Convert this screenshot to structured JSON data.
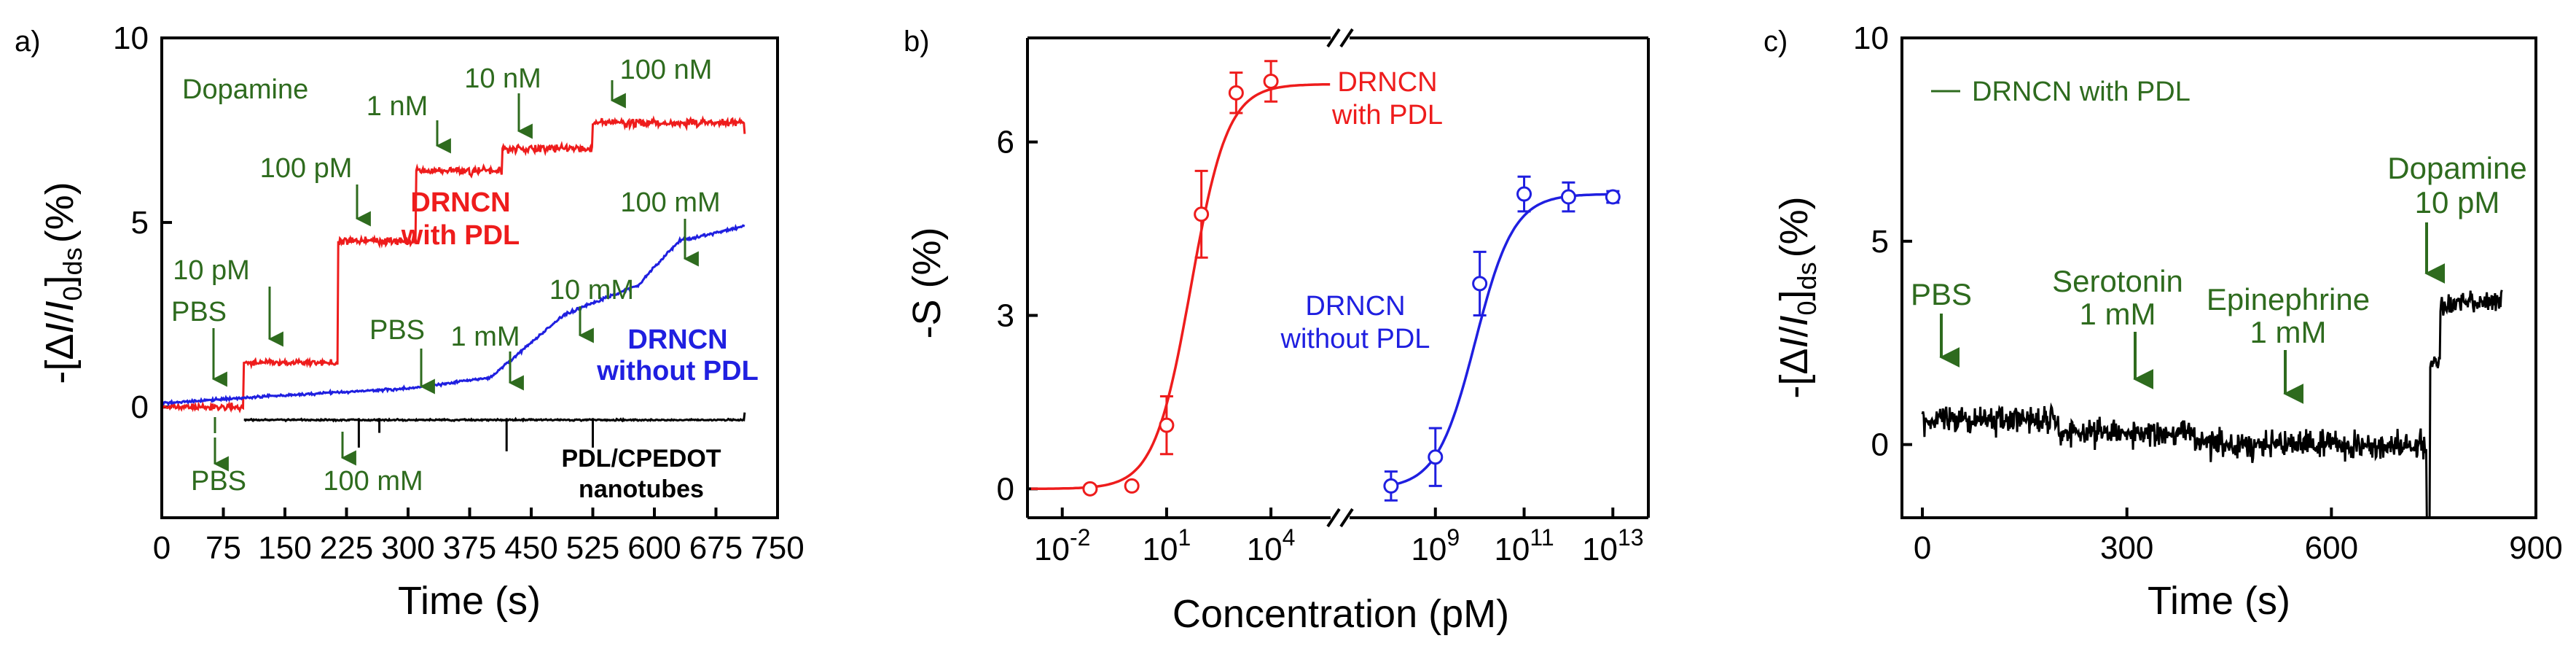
{
  "colors": {
    "red": "#ee1c1c",
    "blue": "#1f1fe0",
    "black": "#000000",
    "green": "#2e6b1e"
  },
  "chart_data": [
    {
      "panel_label": "a)",
      "type": "line",
      "xlabel": "Time (s)",
      "ylabel_parts": {
        "prefix": "-[Δ",
        "I": "I",
        "slash": "/",
        "I0": "I",
        "sub0": "0",
        "close": "]",
        "subds": "ds",
        "unit": "(%)"
      },
      "xlim": [
        0,
        750
      ],
      "ylim": [
        -3,
        10
      ],
      "xticks": [
        "0",
        "75",
        "150",
        "225",
        "300",
        "375",
        "450",
        "525",
        "600",
        "675",
        "750"
      ],
      "xtick_values": [
        0,
        75,
        150,
        225,
        300,
        375,
        450,
        525,
        600,
        675,
        750
      ],
      "yticks": [
        "0",
        "5",
        "10"
      ],
      "ytick_values": [
        0,
        5,
        10
      ],
      "legend_title": "Dopamine",
      "series": [
        {
          "name": "DRNCN with PDL",
          "color": "red",
          "steps": [
            [
              0,
              0,
              0.1
            ],
            [
              30,
              0,
              0.12
            ],
            [
              100,
              1.2,
              0.12
            ],
            [
              215,
              4.5,
              0.15
            ],
            [
              310,
              6.4,
              0.15
            ],
            [
              415,
              7.0,
              0.15
            ],
            [
              525,
              7.7,
              0.15
            ],
            [
              710,
              7.4,
              0.15
            ]
          ]
        },
        {
          "name": "DRNCN without PDL",
          "color": "blue",
          "steps": [
            [
              0,
              0.1,
              0.05
            ],
            [
              100,
              0.25,
              0.05
            ],
            [
              215,
              0.4,
              0.05
            ],
            [
              300,
              0.5,
              0.05
            ],
            [
              400,
              0.8,
              0.05
            ],
            [
              490,
              2.5,
              0.06
            ],
            [
              580,
              3.3,
              0.06
            ],
            [
              630,
              4.5,
              0.06
            ],
            [
              710,
              4.9,
              0.06
            ]
          ]
        },
        {
          "name": "PDL/CPEDOT nanotubes",
          "color": "black",
          "steps": [
            [
              100,
              -0.35,
              0.03
            ],
            [
              710,
              -0.15,
              0.03
            ]
          ]
        }
      ],
      "annotations": [
        {
          "text": "PBS",
          "color": "green"
        },
        {
          "text": "10 pM",
          "color": "green"
        },
        {
          "text": "100 pM",
          "color": "green"
        },
        {
          "text": "1 nM",
          "color": "green"
        },
        {
          "text": "10 nM",
          "color": "green"
        },
        {
          "text": "100 nM",
          "color": "green"
        },
        {
          "text": "PBS",
          "color": "green"
        },
        {
          "text": "PBS",
          "color": "green"
        },
        {
          "text": "1 mM",
          "color": "green"
        },
        {
          "text": "10 mM",
          "color": "green"
        },
        {
          "text": "100 mM",
          "color": "green"
        },
        {
          "text": "100 mM",
          "color": "green"
        }
      ],
      "labels": {
        "red_1": "DRNCN",
        "red_2": "with PDL",
        "blue_1": "DRNCN",
        "blue_2": "without PDL",
        "black_1": "PDL/CPEDOT",
        "black_2": "nanotubes"
      }
    },
    {
      "panel_label": "b)",
      "type": "scatter",
      "xlabel": "Concentration (pM)",
      "ylabel": "-S (%)",
      "ylim": [
        -0.5,
        7.8
      ],
      "yticks": [
        "0",
        "3",
        "6"
      ],
      "ytick_values": [
        0,
        3,
        6
      ],
      "xticks_left": [
        {
          "base": "10",
          "exp": "-2",
          "value": -2
        },
        {
          "base": "10",
          "exp": "1",
          "value": 1
        },
        {
          "base": "10",
          "exp": "4",
          "value": 4
        }
      ],
      "xticks_right": [
        {
          "base": "10",
          "exp": "9",
          "value": 9
        },
        {
          "base": "10",
          "exp": "11",
          "value": 11
        },
        {
          "base": "10",
          "exp": "13",
          "value": 13
        }
      ],
      "xlim_left": [
        -3,
        5.8
      ],
      "xlim_right": [
        7.0,
        13.8
      ],
      "series": [
        {
          "name": "DRNCN with PDL",
          "color": "red",
          "segment": "left",
          "log_x": [
            -1.2,
            0,
            1,
            2,
            3,
            4
          ],
          "y": [
            0.0,
            0.05,
            1.1,
            4.75,
            6.85,
            7.05
          ],
          "err": [
            0.05,
            0.05,
            0.5,
            0.75,
            0.35,
            0.35
          ],
          "fit": {
            "A1": 0.0,
            "A2": 7.0,
            "x0": 1.7,
            "p": 1.9
          }
        },
        {
          "name": "DRNCN without PDL",
          "color": "blue",
          "segment": "right",
          "log_x": [
            8,
            9,
            10,
            11,
            12,
            13
          ],
          "y": [
            0.05,
            0.55,
            3.55,
            5.1,
            5.05,
            5.05
          ],
          "err": [
            0.25,
            0.5,
            0.55,
            0.3,
            0.25,
            0.1
          ],
          "fit": {
            "A1": 0.0,
            "A2": 5.1,
            "x0": 9.9,
            "p": 2.3
          }
        }
      ],
      "labels": {
        "red_1": "DRNCN",
        "red_2": "with PDL",
        "blue_1": "DRNCN",
        "blue_2": "without PDL"
      }
    },
    {
      "panel_label": "c)",
      "type": "line",
      "xlabel": "Time (s)",
      "ylabel_parts": {
        "prefix": "-[Δ",
        "I": "I",
        "slash": "/",
        "I0": "I",
        "sub0": "0",
        "close": "]",
        "subds": "ds",
        "unit": "(%)"
      },
      "xlim": [
        -30,
        900
      ],
      "ylim": [
        -1.8,
        10
      ],
      "xticks": [
        "0",
        "300",
        "600",
        "900"
      ],
      "xtick_values": [
        0,
        300,
        600,
        900
      ],
      "yticks": [
        "0",
        "5",
        "10"
      ],
      "ytick_values": [
        0,
        5,
        10
      ],
      "legend": "DRNCN with PDL",
      "series": [
        {
          "name": "DRNCN with PDL",
          "color": "black",
          "steps": [
            [
              0,
              0.6,
              0.5
            ],
            [
              200,
              0.3,
              0.5
            ],
            [
              400,
              0.0,
              0.5
            ],
            [
              735,
              -0.1,
              0.45
            ],
            [
              740,
              -1.8,
              0
            ],
            [
              745,
              2.0,
              0.3
            ],
            [
              760,
              3.5,
              0.4
            ],
            [
              850,
              3.8,
              0.45
            ]
          ]
        }
      ],
      "annotations": [
        {
          "text": "PBS",
          "color": "green"
        },
        {
          "text": "Serotonin",
          "color": "green"
        },
        {
          "text": "1 mM",
          "color": "green"
        },
        {
          "text": "Epinephrine",
          "color": "green"
        },
        {
          "text": "1 mM",
          "color": "green"
        },
        {
          "text": "Dopamine",
          "color": "green"
        },
        {
          "text": "10 pM",
          "color": "green"
        }
      ]
    }
  ]
}
